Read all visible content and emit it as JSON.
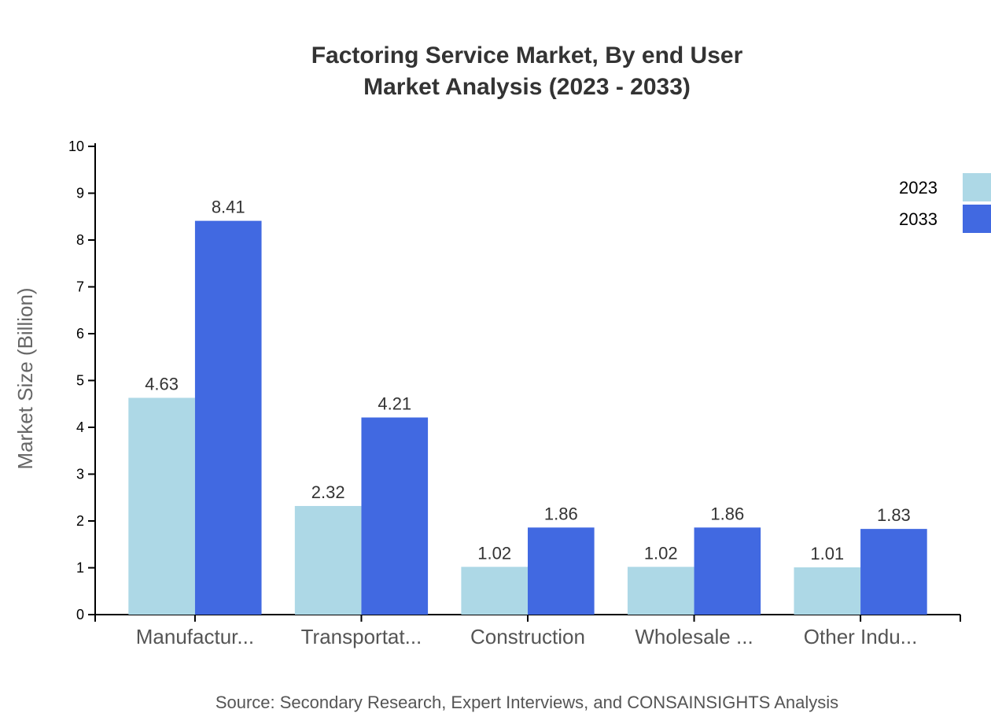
{
  "chart_data": {
    "type": "bar",
    "title": [
      "Factoring Service Market, By end User",
      "Market Analysis (2023 - 2033)"
    ],
    "ylabel": "Market Size (Billion)",
    "xlabel": "",
    "ylim": [
      0,
      10
    ],
    "yticks": [
      0,
      1,
      2,
      3,
      4,
      5,
      6,
      7,
      8,
      9,
      10
    ],
    "categories": [
      "Manufactur...",
      "Transportat...",
      "Construction",
      "Wholesale ...",
      "Other Indu..."
    ],
    "series": [
      {
        "name": "2023",
        "color": "#add8e6",
        "values": [
          4.63,
          2.32,
          1.02,
          1.02,
          1.01
        ]
      },
      {
        "name": "2033",
        "color": "#4169e1",
        "values": [
          8.41,
          4.21,
          1.86,
          1.86,
          1.83
        ]
      }
    ],
    "legend": "top-right",
    "grid": false,
    "source": "Source: Secondary Research, Expert Interviews, and CONSAINSIGHTS Analysis"
  }
}
